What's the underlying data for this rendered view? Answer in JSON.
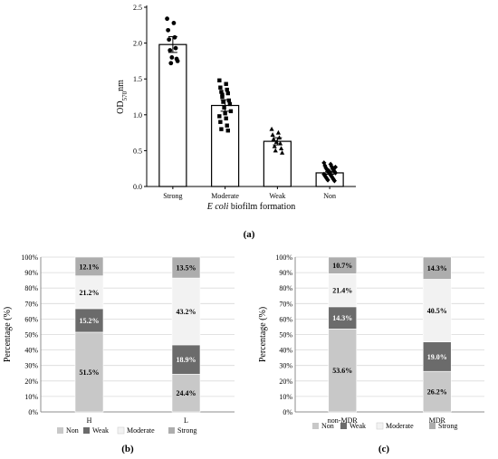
{
  "panels": {
    "a": {
      "label": "(a)"
    },
    "b": {
      "label": "(b)"
    },
    "c": {
      "label": "(c)"
    }
  },
  "chart_data": [
    {
      "id": "a",
      "type": "bar",
      "xlabel": "E coli biofilm formation",
      "ylabel": "OD570nm",
      "ylabel_main": "OD",
      "ylabel_sub": "570",
      "ylabel_tail": "nm",
      "ylim": [
        0,
        2.5
      ],
      "yticks": [
        "0.0",
        "0.5",
        "1.0",
        "1.5",
        "2.0",
        "2.5"
      ],
      "categories": [
        "Strong",
        "Moderate",
        "Weak",
        "Non"
      ],
      "values": [
        1.98,
        1.13,
        0.63,
        0.19
      ],
      "errors": [
        0.11,
        0.08,
        0.05,
        0.02
      ],
      "markers": [
        "circle",
        "square",
        "triangle",
        "diamond"
      ],
      "points": [
        [
          2.34,
          2.28,
          2.18,
          2.08,
          2.05,
          1.93,
          1.9,
          1.78,
          1.72,
          1.75,
          1.8
        ],
        [
          1.48,
          1.43,
          1.38,
          1.35,
          1.32,
          1.3,
          1.25,
          1.2,
          1.18,
          1.15,
          1.1,
          1.05,
          1.02,
          0.98,
          0.95,
          0.9,
          0.85,
          0.8,
          0.78,
          1.28
        ],
        [
          0.8,
          0.75,
          0.72,
          0.68,
          0.66,
          0.6,
          0.56,
          0.53,
          0.5,
          0.47,
          0.62
        ],
        [
          0.33,
          0.31,
          0.29,
          0.28,
          0.26,
          0.25,
          0.24,
          0.23,
          0.22,
          0.21,
          0.2,
          0.19,
          0.18,
          0.17,
          0.16,
          0.15,
          0.14,
          0.13,
          0.12,
          0.11,
          0.1,
          0.09,
          0.08,
          0.22,
          0.27,
          0.2
        ]
      ]
    },
    {
      "id": "b",
      "type": "bar",
      "stacked": true,
      "ylabel": "Percentage (%)",
      "ylim": [
        0,
        100
      ],
      "yticks": [
        "0%",
        "10%",
        "20%",
        "30%",
        "40%",
        "50%",
        "60%",
        "70%",
        "80%",
        "90%",
        "100%"
      ],
      "categories": [
        "H",
        "L"
      ],
      "series": [
        {
          "name": "Non",
          "values": [
            51.5,
            24.4
          ],
          "labels": [
            "51.5%",
            "24.4%"
          ],
          "color": "#c8c8c8",
          "text": "#000000"
        },
        {
          "name": "Weak",
          "values": [
            15.2,
            18.9
          ],
          "labels": [
            "15.2%",
            "18.9%"
          ],
          "color": "#6b6b6b",
          "text": "#ffffff"
        },
        {
          "name": "Moderate",
          "values": [
            21.2,
            43.2
          ],
          "labels": [
            "21.2%",
            "43.2%"
          ],
          "color": "#f2f2f2",
          "text": "#000000"
        },
        {
          "name": "Strong",
          "values": [
            12.1,
            13.5
          ],
          "labels": [
            "12.1%",
            "13.5%"
          ],
          "color": "#adadad",
          "text": "#000000"
        }
      ],
      "legend": "bottom"
    },
    {
      "id": "c",
      "type": "bar",
      "stacked": true,
      "ylabel": "Percentage (%)",
      "ylim": [
        0,
        100
      ],
      "yticks": [
        "0%",
        "10%",
        "20%",
        "30%",
        "40%",
        "50%",
        "60%",
        "70%",
        "80%",
        "90%",
        "100%"
      ],
      "categories": [
        "non-MDR",
        "MDR"
      ],
      "series": [
        {
          "name": "Non",
          "values": [
            53.6,
            26.2
          ],
          "labels": [
            "53.6%",
            "26.2%"
          ],
          "color": "#c8c8c8",
          "text": "#000000"
        },
        {
          "name": "Weak",
          "values": [
            14.3,
            19.0
          ],
          "labels": [
            "14.3%",
            "19.0%"
          ],
          "color": "#6b6b6b",
          "text": "#ffffff"
        },
        {
          "name": "Moderate",
          "values": [
            21.4,
            40.5
          ],
          "labels": [
            "21.4%",
            "40.5%"
          ],
          "color": "#f2f2f2",
          "text": "#000000"
        },
        {
          "name": "Strong",
          "values": [
            10.7,
            14.3
          ],
          "labels": [
            "10.7%",
            "14.3%"
          ],
          "color": "#adadad",
          "text": "#000000"
        }
      ],
      "legend": "bottom"
    }
  ]
}
